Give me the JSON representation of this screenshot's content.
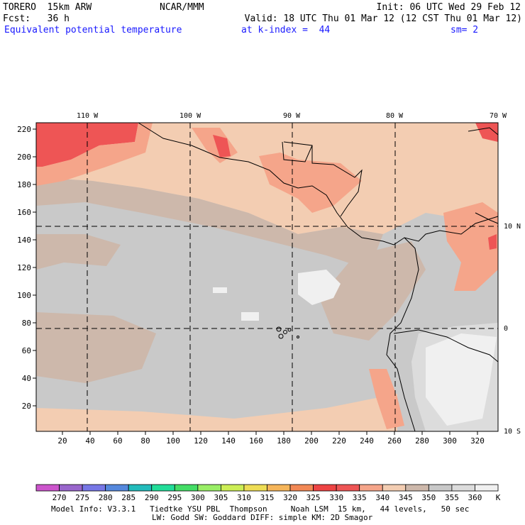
{
  "header": {
    "model": "TORERO  15km ARW",
    "center": "NCAR/MMM",
    "init": "Init: 06 UTC Wed 29 Feb 12",
    "fcst": "Fcst:   36 h",
    "valid": "Valid: 18 UTC Thu 01 Mar 12 (12 CST Thu 01 Mar 12)",
    "field": "Equivalent potential temperature",
    "level": "at k-index =  44",
    "smooth": "sm= 2"
  },
  "map": {
    "lon_labels": [
      "110 W",
      "100 W",
      "90 W",
      "80 W",
      "70 W"
    ],
    "lat_labels": [
      "10 N",
      "0",
      "10 S"
    ],
    "y_ticks": [
      "20",
      "40",
      "60",
      "80",
      "100",
      "120",
      "140",
      "160",
      "180",
      "200",
      "220"
    ],
    "x_ticks": [
      "20",
      "40",
      "60",
      "80",
      "100",
      "120",
      "140",
      "160",
      "180",
      "200",
      "220",
      "240",
      "260",
      "280",
      "300",
      "320"
    ]
  },
  "colorbar": {
    "labels": [
      "270",
      "275",
      "280",
      "285",
      "290",
      "295",
      "300",
      "305",
      "310",
      "315",
      "320",
      "325",
      "330",
      "335",
      "340",
      "345",
      "350",
      "355",
      "360"
    ],
    "unit": "K",
    "colors": [
      "#cc55cc",
      "#9966cc",
      "#7777e6",
      "#5588dd",
      "#22bbbb",
      "#22dd99",
      "#44dd66",
      "#99ee66",
      "#ccee55",
      "#eedd55",
      "#f5b55a",
      "#f28855",
      "#ee4444",
      "#ee5555",
      "#f5a58a",
      "#f3cdb2",
      "#cdb8ab",
      "#c8c8c8",
      "#dcdcdc",
      "#f0f0f0"
    ]
  },
  "footer": {
    "line1": "Model Info: V3.3.1   Tiedtke YSU PBL  Thompson     Noah LSM  15 km,   44 levels,   50 sec",
    "line2": "LW: Godd SW: Goddard DIFF: simple KM: 2D Smagor"
  }
}
